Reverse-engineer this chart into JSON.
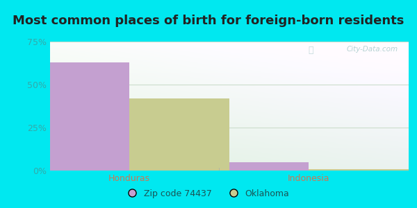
{
  "title": "Most common places of birth for foreign-born residents",
  "categories": [
    "Honduras",
    "Indonesia"
  ],
  "series": [
    {
      "label": "Zip code 74437",
      "color": "#c4a0d0",
      "values": [
        63,
        5
      ]
    },
    {
      "label": "Oklahoma",
      "color": "#c8cc90",
      "values": [
        42,
        1
      ]
    }
  ],
  "ylim": [
    0,
    75
  ],
  "yticks": [
    0,
    25,
    50,
    75
  ],
  "ytick_labels": [
    "0%",
    "25%",
    "50%",
    "75%"
  ],
  "bar_width": 0.28,
  "bg_outer": "#00e8f0",
  "bg_plot_top": "#e8f5e9",
  "bg_plot_bottom": "#d0f0e8",
  "title_fontsize": 13,
  "tick_fontsize": 9,
  "legend_fontsize": 9,
  "category_color": "#cc7755",
  "ytick_color": "#33aaaa",
  "watermark": "City-Data.com",
  "grid_color": "#ccddcc"
}
